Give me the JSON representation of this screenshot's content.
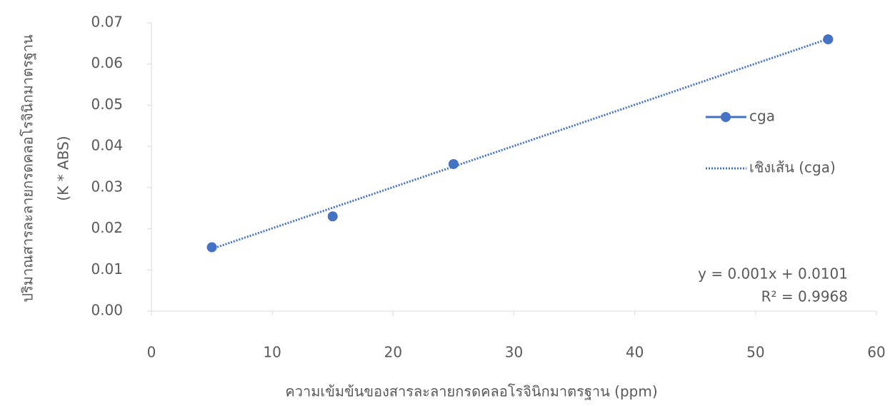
{
  "chart_data": {
    "type": "scatter",
    "xlabel": "ความเข้มข้นของสารละลายกรดคลอโรจินิกมาตรฐาน (ppm)",
    "ylabel": [
      "ปริมาณสารละลายกรดคลอโรจินิกมาตรฐาน",
      "(K * ABS)"
    ],
    "series": [
      {
        "name": "cga",
        "color": "#4472c4",
        "style": "markers",
        "x": [
          5,
          15,
          25,
          56
        ],
        "values": [
          0.0155,
          0.023,
          0.0357,
          0.066
        ]
      },
      {
        "name": "เชิงเส้น (cga)",
        "color": "#4472c4",
        "style": "dotted",
        "x": [
          5,
          56
        ],
        "values": [
          0.0151,
          0.0661
        ]
      }
    ],
    "annotations": [
      "y = 0.001x + 0.0101",
      "R² = 0.9968"
    ],
    "xlim": [
      0,
      60
    ],
    "xticks": [
      0,
      10,
      20,
      30,
      40,
      50,
      60
    ],
    "ylim": [
      0,
      0.07
    ],
    "yticks": [
      {
        "value": 0,
        "label": "0.00"
      },
      0.01,
      0.02,
      0.03,
      0.04,
      0.05,
      0.06,
      0.07
    ],
    "legend": "right"
  }
}
